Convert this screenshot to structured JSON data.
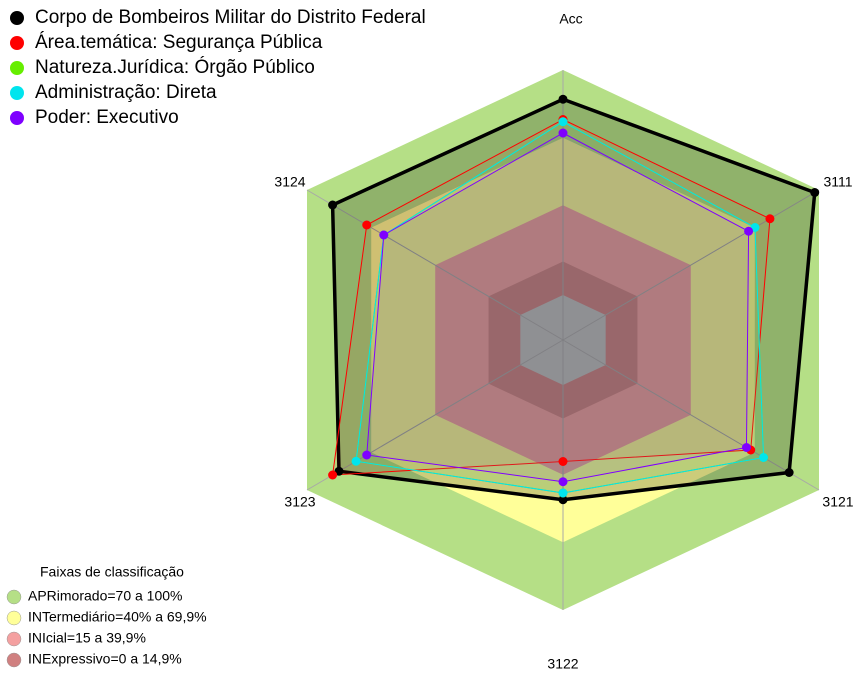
{
  "chart_data": {
    "type": "radar",
    "categories": [
      "Acc",
      "3111",
      "3121",
      "3122",
      "3123",
      "3124"
    ],
    "ylim": [
      -20,
      100
    ],
    "center_color": "#c0c0c0",
    "series": [
      {
        "name": "Corpo de Bombeiros Militar do Distrito Federal",
        "color": "#000000",
        "values": [
          87,
          98,
          86,
          51,
          85,
          88
        ]
      },
      {
        "name": "Área.temática: Segurança Pública",
        "color": "#ff0000",
        "values": [
          78,
          77,
          68,
          34,
          88,
          72
        ]
      },
      {
        "name": "Natureza.Jurídica: Órgão Público",
        "color": "#66ee00",
        "values": [
          77,
          70,
          74,
          48,
          77,
          64
        ]
      },
      {
        "name": "Administração: Direta",
        "color": "#00e5ee",
        "values": [
          77,
          70,
          74,
          48,
          77,
          64
        ]
      },
      {
        "name": "Poder: Executivo",
        "color": "#7f00ff",
        "values": [
          72,
          67,
          66,
          43,
          72,
          64
        ]
      }
    ],
    "legend_title": "Faixas de classificação",
    "bands": [
      {
        "label": "APRimorado=70 a 100%",
        "min": 70,
        "max": 100,
        "color": "#b5df86"
      },
      {
        "label": "INTermediário=40% a 69,9%",
        "min": 40,
        "max": 69.9,
        "color": "#ffff99"
      },
      {
        "label": "INIcial=15 a 39,9%",
        "min": 15,
        "max": 39.9,
        "color": "#f4a0a0"
      },
      {
        "label": "INExpressivo=0 a 14,9%",
        "min": 0,
        "max": 14.9,
        "color": "#d08080"
      }
    ]
  }
}
